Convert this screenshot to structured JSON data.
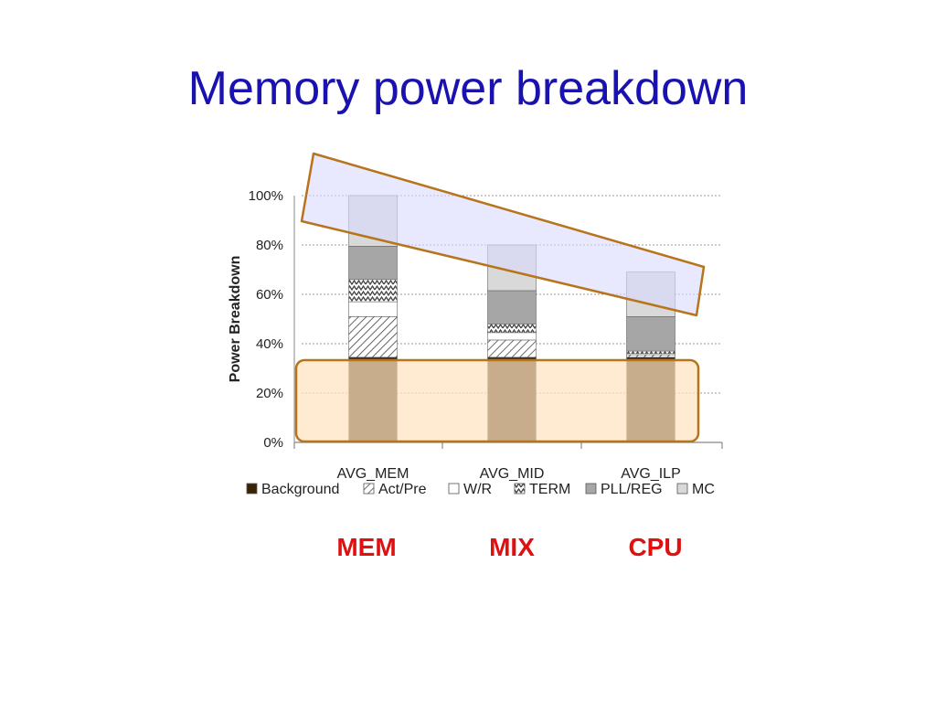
{
  "slide": {
    "title": "Memory power breakdown",
    "group_labels": [
      "MEM",
      "MIX",
      "CPU"
    ]
  },
  "colors": {
    "title": "#1a12b0",
    "group_label": "#e01010",
    "background_segment": "#3a2305",
    "upper_highlight_fill": "#d8d8ff",
    "upper_highlight_stroke": "#b8741a",
    "lower_highlight_fill": "#fde3bf",
    "lower_highlight_stroke": "#b8741a"
  },
  "chart_data": {
    "type": "bar",
    "stacked": true,
    "categories": [
      "AVG_MEM",
      "AVG_MID",
      "AVG_ILP"
    ],
    "ylabel": "Power Breakdown",
    "ylim": [
      0,
      100
    ],
    "yticks": [
      "0%",
      "20%",
      "40%",
      "60%",
      "80%",
      "100%"
    ],
    "grid": true,
    "legend_position": "bottom",
    "series": [
      {
        "name": "Background",
        "values": [
          34.5,
          34.5,
          34.5
        ],
        "pattern": "solid-dark"
      },
      {
        "name": "Act/Pre",
        "values": [
          16.5,
          7,
          1
        ],
        "pattern": "diagonal"
      },
      {
        "name": "W/R",
        "values": [
          6,
          3,
          0.5
        ],
        "pattern": "white"
      },
      {
        "name": "TERM",
        "values": [
          9,
          3.5,
          1
        ],
        "pattern": "zigzag"
      },
      {
        "name": "PLL/REG",
        "values": [
          13.5,
          13.5,
          14
        ],
        "pattern": "gray"
      },
      {
        "name": "MC",
        "values": [
          20.5,
          18.5,
          18
        ],
        "pattern": "light"
      }
    ]
  }
}
